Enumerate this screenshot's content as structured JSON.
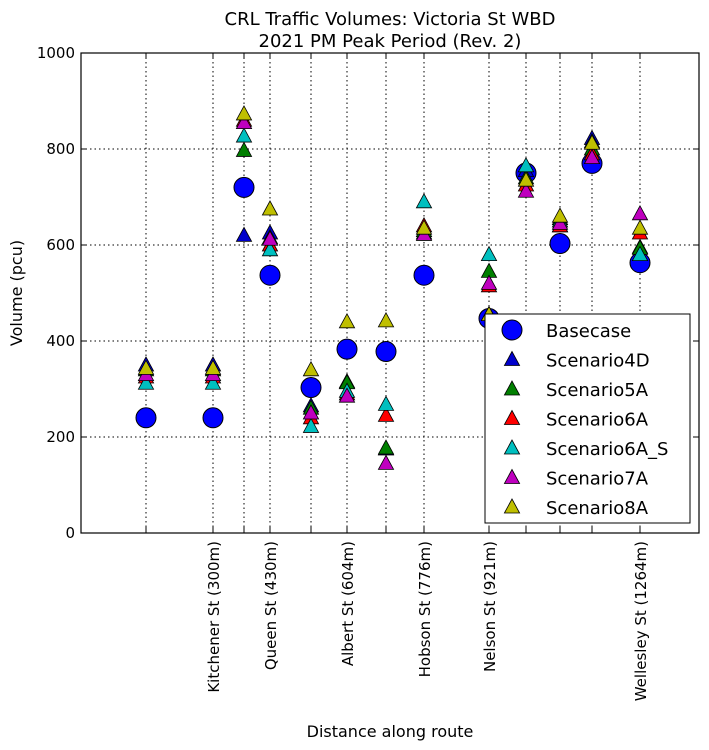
{
  "chart_data": {
    "type": "scatter",
    "title": "CRL Traffic Volumes: Victoria St WBD",
    "subtitle": "2021 PM Peak Period (Rev. 2)",
    "xlabel": "Distance along route",
    "ylabel": "Volume (pcu)",
    "ylim": [
      0,
      1000
    ],
    "yticks": [
      0,
      200,
      400,
      600,
      800,
      1000
    ],
    "grid": true,
    "legend_position": "lower-right",
    "x_positions": [
      "P1",
      "Kitchener St (300m)",
      "P3",
      "Queen St (430m)",
      "P5",
      "Albert St (604m)",
      "P7",
      "Hobson St (776m)",
      "Nelson St (921m)",
      "P10",
      "P11",
      "P12",
      "Wellesley St (1264m)"
    ],
    "x_tick_labels": [
      "",
      "Kitchener St (300m)",
      "",
      "Queen St (430m)",
      "",
      "Albert St (604m)",
      "",
      "Hobson St (776m)",
      "Nelson St (921m)",
      "",
      "",
      "",
      "Wellesley St (1264m)"
    ],
    "series": [
      {
        "name": "Basecase",
        "color": "#0000ff",
        "marker": "circle",
        "values": [
          240,
          240,
          720,
          537,
          303,
          383,
          378,
          537,
          447,
          750,
          603,
          770,
          563
        ]
      },
      {
        "name": "Scenario4D",
        "color": "#0000cc",
        "marker": "triangle",
        "values": [
          350,
          350,
          620,
          625,
          265,
          315,
          175,
          625,
          455,
          755,
          640,
          822,
          595
        ]
      },
      {
        "name": "Scenario5A",
        "color": "#007f00",
        "marker": "triangle",
        "values": [
          340,
          340,
          797,
          615,
          260,
          313,
          177,
          630,
          545,
          740,
          655,
          800,
          593
        ]
      },
      {
        "name": "Scenario6A",
        "color": "#ff0000",
        "marker": "triangle",
        "values": [
          325,
          325,
          860,
          600,
          240,
          290,
          245,
          640,
          515,
          725,
          640,
          790,
          625
        ]
      },
      {
        "name": "Scenario6A_S",
        "color": "#00bfbf",
        "marker": "triangle",
        "values": [
          312,
          312,
          827,
          590,
          222,
          295,
          268,
          690,
          580,
          765,
          650,
          815,
          580
        ]
      },
      {
        "name": "Scenario7A",
        "color": "#bf00bf",
        "marker": "triangle",
        "values": [
          330,
          330,
          855,
          612,
          250,
          285,
          145,
          622,
          520,
          712,
          645,
          782,
          665
        ]
      },
      {
        "name": "Scenario8A",
        "color": "#bfbf00",
        "marker": "triangle",
        "values": [
          343,
          343,
          873,
          675,
          340,
          440,
          442,
          635,
          455,
          735,
          660,
          812,
          635
        ]
      }
    ]
  }
}
